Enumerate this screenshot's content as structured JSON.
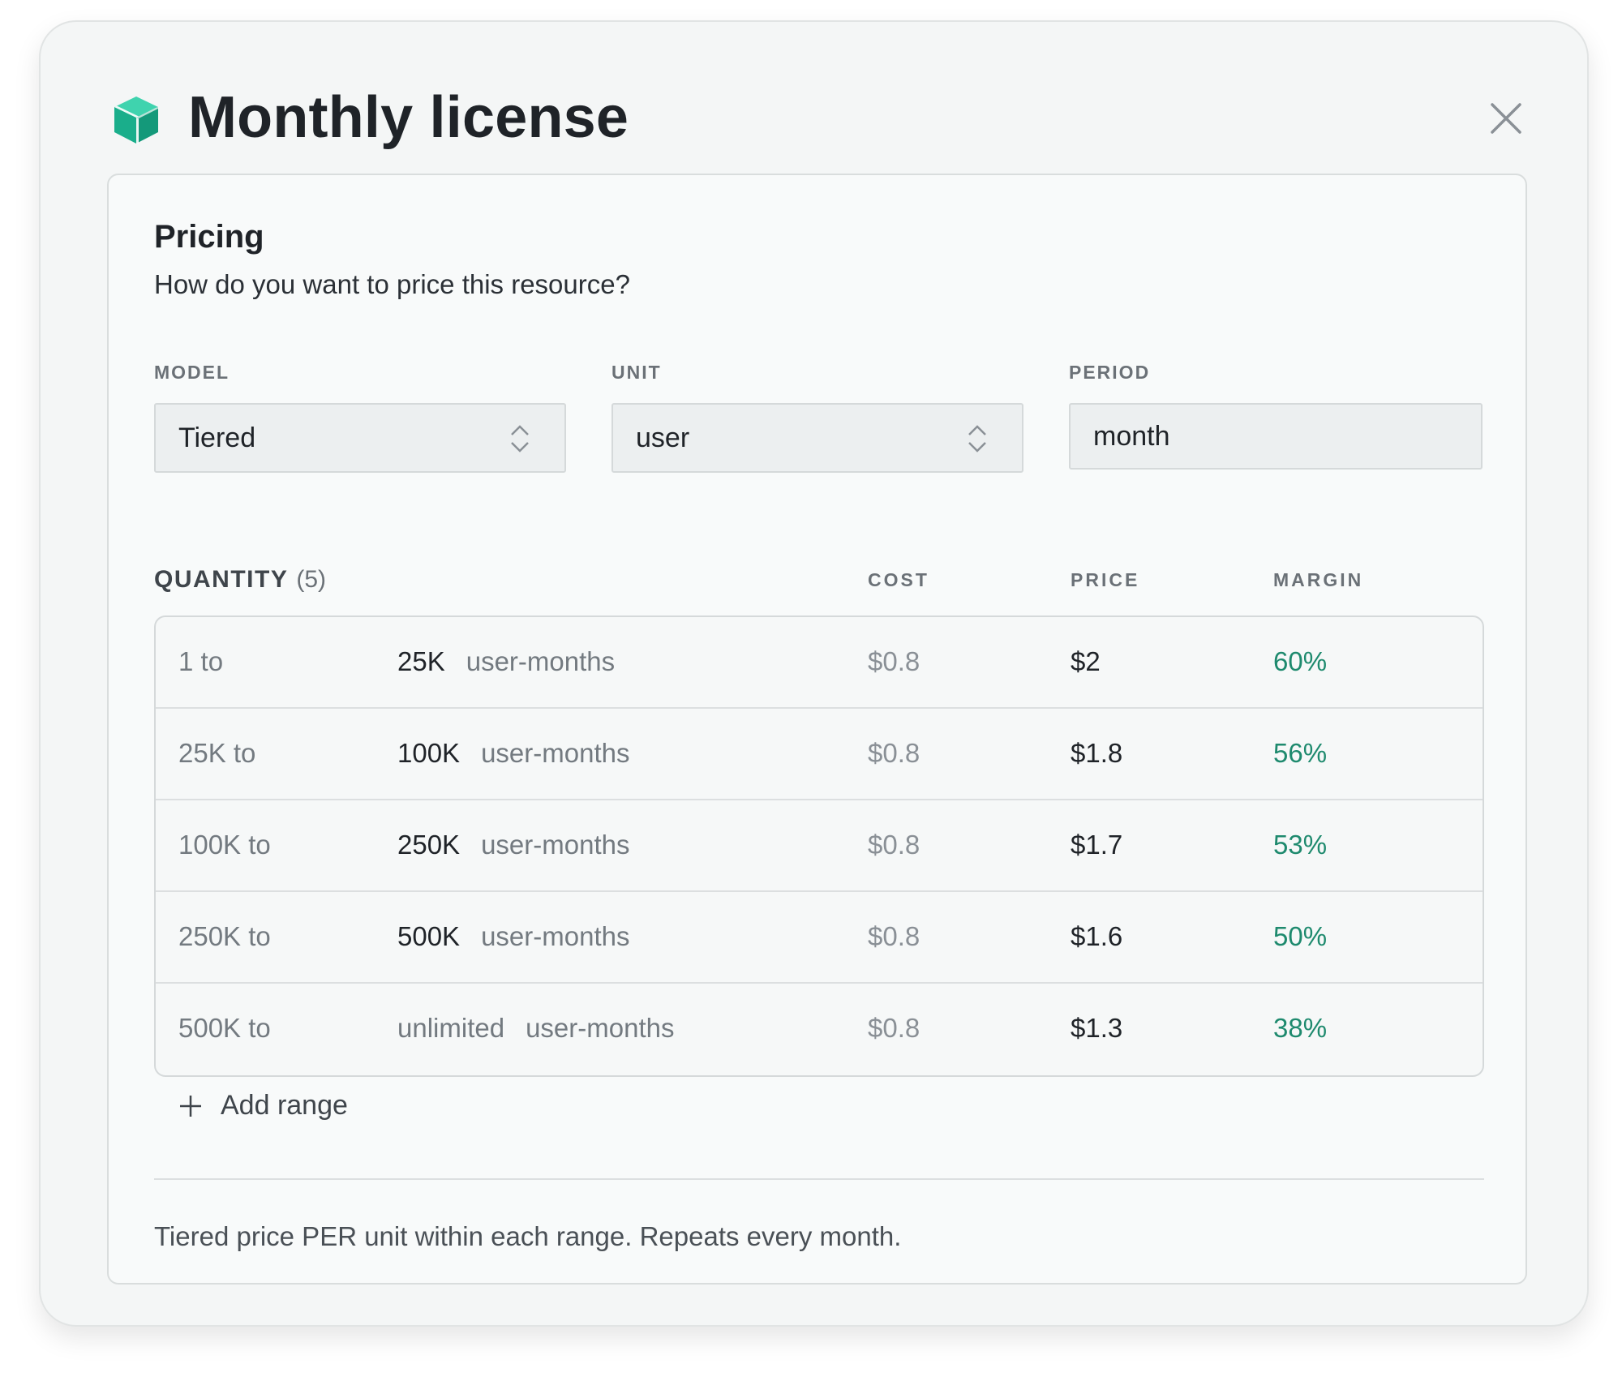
{
  "dialog": {
    "title": "Monthly license",
    "icon": "cube-icon",
    "accent_color": "#1fbf9a"
  },
  "pricing": {
    "title": "Pricing",
    "subtitle": "How do you want to price this resource?",
    "model": {
      "label": "MODEL",
      "value": "Tiered"
    },
    "unit": {
      "label": "UNIT",
      "value": "user"
    },
    "period": {
      "label": "PERIOD",
      "value": "month"
    }
  },
  "quantity": {
    "label": "QUANTITY",
    "count": "(5)",
    "columns": {
      "cost": "COST",
      "price": "PRICE",
      "margin": "MARGIN"
    },
    "rows": [
      {
        "from": "1 to",
        "to": "25K",
        "unit": "user-months",
        "cost": "$0.8",
        "price": "$2",
        "margin": "60%"
      },
      {
        "from": "25K to",
        "to": "100K",
        "unit": "user-months",
        "cost": "$0.8",
        "price": "$1.8",
        "margin": "56%"
      },
      {
        "from": "100K to",
        "to": "250K",
        "unit": "user-months",
        "cost": "$0.8",
        "price": "$1.7",
        "margin": "53%"
      },
      {
        "from": "250K to",
        "to": "500K",
        "unit": "user-months",
        "cost": "$0.8",
        "price": "$1.6",
        "margin": "50%"
      },
      {
        "from": "500K to",
        "to": "unlimited",
        "unit": "user-months",
        "cost": "$0.8",
        "price": "$1.3",
        "margin": "38%"
      }
    ],
    "add_range_label": "Add range"
  },
  "footer_note": "Tiered price PER unit within each range. Repeats every month.",
  "colors": {
    "margin_text": "#1e8a6e",
    "background": "#f4f6f6"
  }
}
